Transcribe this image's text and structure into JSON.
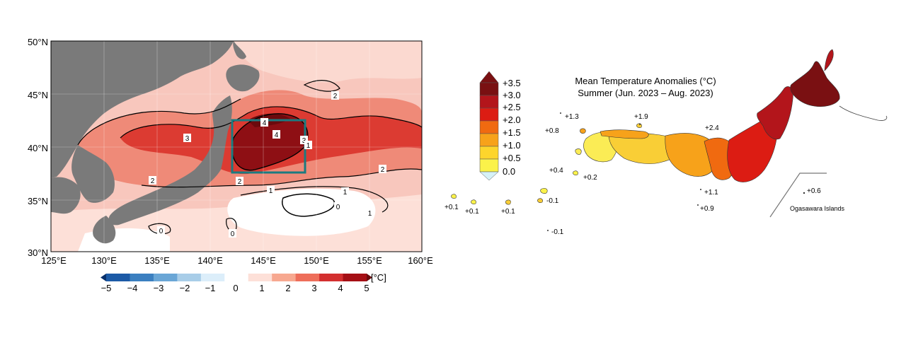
{
  "left_map": {
    "lat_labels": [
      "50°N",
      "45°N",
      "40°N",
      "35°N",
      "30°N"
    ],
    "lon_labels": [
      "125°E",
      "130°E",
      "135°E",
      "140°E",
      "145°E",
      "150°E",
      "155°E",
      "160°E"
    ],
    "contour_labels": [
      "4",
      "4",
      "3",
      "3",
      "2",
      "2",
      "2",
      "2",
      "1",
      "1",
      "1",
      "1",
      "0",
      "0",
      "0"
    ],
    "colorbar": {
      "unit": "[°C]",
      "ticks": [
        "−5",
        "−4",
        "−3",
        "−2",
        "−1",
        "0",
        "1",
        "2",
        "3",
        "4",
        "5"
      ],
      "colors": [
        "#08306b",
        "#1c5aa6",
        "#3b7fc0",
        "#6aa6d6",
        "#a8cde8",
        "#dceefa",
        "#ffffff",
        "#fde0d8",
        "#f7a890",
        "#ee6e5a",
        "#d32f2f",
        "#a50f15",
        "#6b0a0d"
      ]
    },
    "colors": {
      "land": "#7a7a7a",
      "box": "#1b7b80",
      "sea_base": "#f8c7bd"
    }
  },
  "right_map": {
    "title_line1": "Mean Temperature Anomalies (°C)",
    "title_line2": "Summer (Jun. 2023 – Aug. 2023)",
    "legend": {
      "labels": [
        "+3.5",
        "+3.0",
        "+2.5",
        "+2.0",
        "+1.5",
        "+1.0",
        "+0.5",
        "0.0"
      ],
      "colors": [
        "#7a1012",
        "#b3151b",
        "#dc1c13",
        "#f06a10",
        "#f7a21a",
        "#fdd52c",
        "#fbf24a"
      ]
    },
    "station_values": [
      "+1.3",
      "+1.9",
      "+0.8",
      "+2.4",
      "+0.4",
      "+0.2",
      "+1.1",
      "+0.9",
      "+0.1",
      "+0.1",
      "+0.1",
      "-0.1",
      "-0.1",
      "+0.6"
    ],
    "inset_label": "Ogasawara Islands"
  }
}
